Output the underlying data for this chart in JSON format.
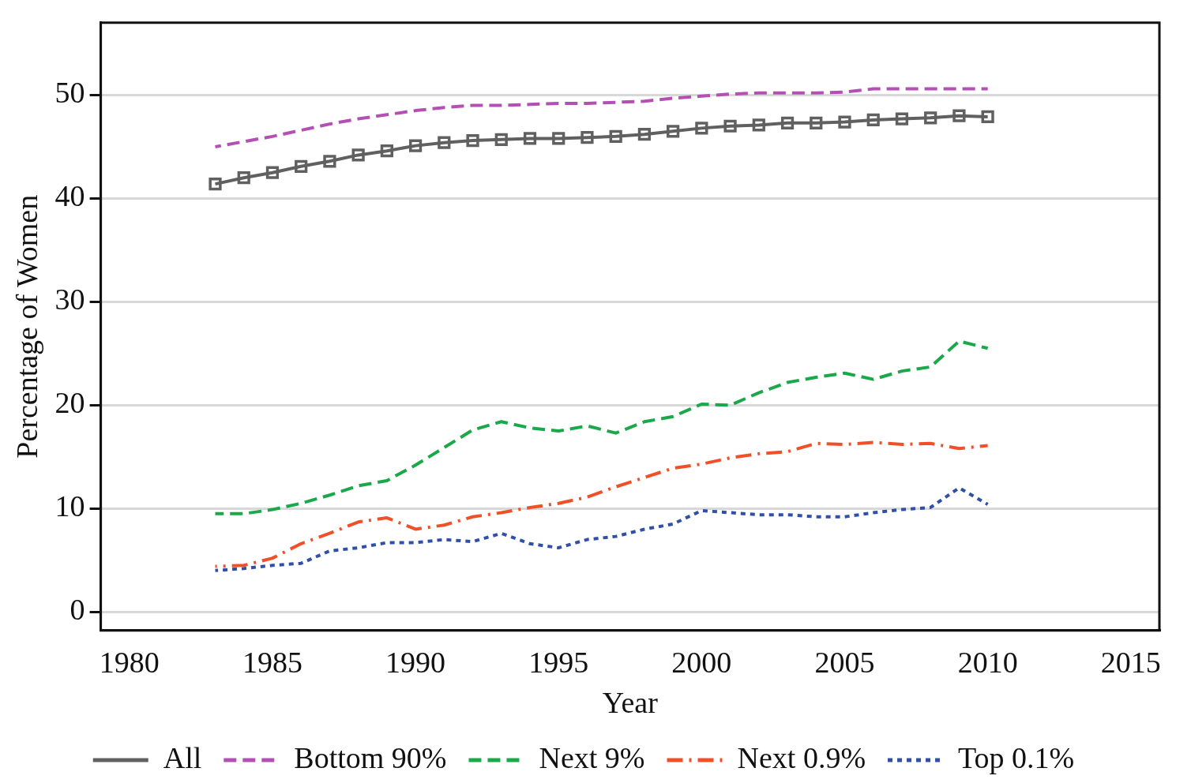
{
  "chart_data": {
    "type": "line",
    "xlabel": "Year",
    "ylabel": "Percentage of Women",
    "x": [
      1983,
      1984,
      1985,
      1986,
      1987,
      1988,
      1989,
      1990,
      1991,
      1992,
      1993,
      1994,
      1995,
      1996,
      1997,
      1998,
      1999,
      2000,
      2001,
      2002,
      2003,
      2004,
      2005,
      2006,
      2007,
      2008,
      2009,
      2010
    ],
    "xlim": [
      1979,
      2016
    ],
    "xticks": [
      1980,
      1985,
      1990,
      1995,
      2000,
      2005,
      2010,
      2015
    ],
    "ylim": [
      -1.8,
      57
    ],
    "yticks": [
      0,
      10,
      20,
      30,
      40,
      50
    ],
    "grid": "y",
    "legend": "bottom",
    "series": [
      {
        "name": "All",
        "color": "#606060",
        "marker": "square",
        "line_style": "solid",
        "values": [
          41.4,
          42.0,
          42.5,
          43.1,
          43.6,
          44.2,
          44.6,
          45.1,
          45.4,
          45.6,
          45.7,
          45.8,
          45.8,
          45.9,
          46.0,
          46.2,
          46.5,
          46.8,
          47.0,
          47.1,
          47.3,
          47.3,
          47.4,
          47.6,
          47.7,
          47.8,
          48.0,
          47.9
        ]
      },
      {
        "name": "Bottom 90%",
        "color": "#b450b4",
        "marker": "none",
        "line_style": "dashed",
        "values": [
          45.0,
          45.5,
          46.0,
          46.6,
          47.2,
          47.7,
          48.1,
          48.5,
          48.8,
          49.0,
          49.0,
          49.1,
          49.2,
          49.2,
          49.3,
          49.4,
          49.7,
          49.9,
          50.1,
          50.2,
          50.2,
          50.2,
          50.3,
          50.6,
          50.6,
          50.6,
          50.6,
          50.6
        ]
      },
      {
        "name": "Next 9%",
        "color": "#1aa84a",
        "marker": "none",
        "line_style": "dashed",
        "values": [
          9.5,
          9.5,
          9.9,
          10.5,
          11.3,
          12.2,
          12.7,
          14.2,
          15.9,
          17.6,
          18.4,
          17.8,
          17.5,
          18.0,
          17.3,
          18.4,
          18.9,
          20.1,
          20.0,
          21.2,
          22.2,
          22.7,
          23.1,
          22.5,
          23.3,
          23.7,
          26.2,
          25.5
        ]
      },
      {
        "name": "Next 0.9%",
        "color": "#f05028",
        "marker": "none",
        "line_style": "dashdot",
        "values": [
          4.4,
          4.5,
          5.2,
          6.6,
          7.6,
          8.7,
          9.1,
          8.0,
          8.4,
          9.2,
          9.6,
          10.1,
          10.5,
          11.1,
          12.1,
          13.0,
          13.9,
          14.3,
          14.9,
          15.3,
          15.5,
          16.3,
          16.2,
          16.4,
          16.2,
          16.3,
          15.8,
          16.1
        ]
      },
      {
        "name": "Top 0.1%",
        "color": "#3050a8",
        "marker": "none",
        "line_style": "dotted",
        "values": [
          4.0,
          4.2,
          4.5,
          4.7,
          5.9,
          6.2,
          6.7,
          6.7,
          7.0,
          6.8,
          7.6,
          6.6,
          6.2,
          7.0,
          7.3,
          8.0,
          8.5,
          9.8,
          9.6,
          9.4,
          9.4,
          9.2,
          9.2,
          9.6,
          9.9,
          10.1,
          12.0,
          10.4
        ]
      }
    ]
  }
}
